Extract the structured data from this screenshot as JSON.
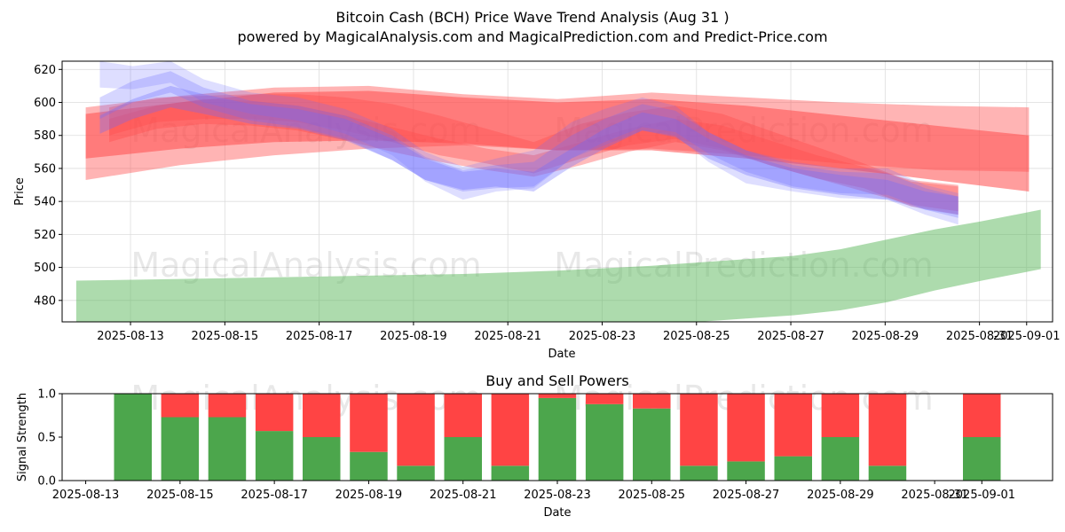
{
  "title_line1": "Bitcoin Cash (BCH) Price Wave Trend Analysis (Aug 31 )",
  "title_line2": "powered by MagicalAnalysis.com and MagicalPrediction.com and Predict-Price.com",
  "watermarks": [
    "MagicalAnalysis.com",
    "MagicalPrediction.com"
  ],
  "colors": {
    "red_band": "#ff4d4d",
    "blue_band": "#6b6bff",
    "green_band": "#5cb85c",
    "buy": "#4ca64c",
    "sell": "#ff4444",
    "grid": "#dddddd"
  },
  "chart_data": [
    {
      "type": "area",
      "title": "",
      "xlabel": "Date",
      "ylabel": "Price",
      "ylim": [
        467,
        625
      ],
      "xlim": [
        -0.5,
        20.5
      ],
      "x_tick_labels": [
        "2025-08-13",
        "2025-08-15",
        "2025-08-17",
        "2025-08-19",
        "2025-08-21",
        "2025-08-23",
        "2025-08-25",
        "2025-08-27",
        "2025-08-29",
        "2025-08-31",
        "2025-09-01"
      ],
      "x_tick_positions": [
        0.95,
        2.95,
        4.95,
        6.95,
        8.95,
        10.95,
        12.95,
        14.95,
        16.95,
        18.95,
        19.95
      ],
      "y_ticks": [
        480,
        500,
        520,
        540,
        560,
        580,
        600,
        620
      ],
      "grid": true,
      "series": [
        {
          "name": "wave-green",
          "kind": "band",
          "x": [
            -0.2,
            2,
            4,
            6,
            8,
            10,
            12,
            13,
            14,
            15,
            16,
            17,
            18,
            19,
            20.25
          ],
          "upper": [
            492,
            493,
            494,
            495,
            496,
            498,
            501,
            503,
            505,
            507,
            511,
            517,
            523,
            528,
            535
          ],
          "lower": [
            467,
            467,
            467,
            467,
            467,
            467,
            467,
            467,
            469,
            471,
            474,
            479,
            486,
            492,
            499
          ]
        },
        {
          "name": "wave-red-outer",
          "kind": "band",
          "x": [
            0,
            2,
            4,
            6,
            8,
            10,
            12,
            14,
            16,
            18,
            20
          ],
          "upper": [
            597,
            604,
            609,
            610,
            605,
            602,
            606,
            603,
            600,
            598,
            597
          ],
          "lower": [
            553,
            562,
            568,
            572,
            574,
            571,
            572,
            568,
            563,
            559,
            558
          ]
        },
        {
          "name": "wave-red-mid",
          "kind": "band",
          "x": [
            0,
            2,
            4,
            6,
            8,
            10,
            12,
            14,
            16,
            18,
            20
          ],
          "upper": [
            593,
            600,
            606,
            607,
            603,
            600,
            602,
            598,
            592,
            586,
            580
          ],
          "lower": [
            566,
            572,
            576,
            577,
            575,
            571,
            571,
            566,
            560,
            553,
            546
          ]
        },
        {
          "name": "wave-red-1",
          "kind": "band",
          "x": [
            0.5,
            1.5,
            2.5,
            3.5,
            4.5,
            5.5,
            6.5,
            7.5,
            8.5,
            9.5,
            10.5,
            11.5,
            12.5,
            13.5,
            14.5,
            15.5,
            16.5,
            17.5,
            18.5
          ],
          "upper": [
            597,
            603,
            604,
            605,
            605,
            603,
            599,
            592,
            584,
            576,
            587,
            594,
            598,
            593,
            583,
            573,
            563,
            552,
            549
          ],
          "lower": [
            580,
            588,
            590,
            590,
            588,
            583,
            576,
            568,
            563,
            557,
            566,
            574,
            578,
            572,
            562,
            554,
            548,
            537,
            532
          ]
        },
        {
          "name": "wave-red-2",
          "kind": "band",
          "x": [
            0.5,
            1.5,
            2.5,
            3.5,
            4.5,
            5.5,
            6.5,
            7.5,
            8.5,
            9.5,
            10.5,
            11.5,
            12.5,
            13.5,
            14.5,
            15.5,
            16.5,
            17.5,
            18.5
          ],
          "upper": [
            590,
            598,
            602,
            601,
            598,
            592,
            585,
            578,
            572,
            568,
            576,
            584,
            590,
            586,
            577,
            568,
            561,
            553,
            550
          ],
          "lower": [
            576,
            584,
            587,
            586,
            583,
            577,
            570,
            564,
            559,
            555,
            562,
            570,
            576,
            571,
            562,
            554,
            546,
            538,
            534
          ]
        },
        {
          "name": "wave-blue-1",
          "kind": "band",
          "x": [
            0.3,
            1,
            1.8,
            2.5,
            3.5,
            4.5,
            5.5,
            6.5,
            7.2,
            8,
            8.7,
            9.5,
            10.3,
            11,
            11.8,
            12.5,
            13.2,
            14,
            15,
            16,
            17,
            17.8,
            18.5
          ],
          "upper": [
            625,
            622,
            626,
            614,
            606,
            603,
            596,
            584,
            570,
            561,
            566,
            571,
            588,
            596,
            603,
            598,
            582,
            571,
            564,
            560,
            560,
            550,
            545
          ],
          "lower": [
            609,
            608,
            612,
            600,
            593,
            589,
            581,
            568,
            552,
            541,
            546,
            548,
            566,
            574,
            583,
            580,
            564,
            551,
            546,
            542,
            541,
            532,
            526
          ]
        },
        {
          "name": "wave-blue-2",
          "kind": "band",
          "x": [
            0.3,
            1,
            1.8,
            2.5,
            3.5,
            4.5,
            5.5,
            6.5,
            7.2,
            8,
            8.7,
            9.5,
            10.3,
            11,
            11.8,
            12.5,
            13.2,
            14,
            15,
            16,
            17,
            17.8,
            18.5
          ],
          "upper": [
            603,
            613,
            619,
            609,
            601,
            598,
            592,
            580,
            567,
            559,
            562,
            564,
            580,
            590,
            599,
            595,
            582,
            571,
            562,
            558,
            557,
            548,
            543
          ],
          "lower": [
            590,
            600,
            606,
            597,
            589,
            585,
            578,
            565,
            553,
            546,
            548,
            549,
            566,
            576,
            585,
            582,
            569,
            558,
            549,
            545,
            544,
            535,
            530
          ]
        },
        {
          "name": "wave-blue-3",
          "kind": "band",
          "x": [
            0.3,
            1,
            1.8,
            2.5,
            3.5,
            4.5,
            5.5,
            6.5,
            7.2,
            8,
            8.7,
            9.5,
            10.3,
            11,
            11.8,
            12.5,
            13.2,
            14,
            15,
            16,
            17,
            17.8,
            18.5
          ],
          "upper": [
            592,
            602,
            610,
            605,
            599,
            596,
            590,
            578,
            566,
            558,
            560,
            558,
            572,
            584,
            594,
            590,
            578,
            568,
            560,
            556,
            553,
            546,
            543
          ],
          "lower": [
            581,
            590,
            597,
            593,
            587,
            584,
            577,
            565,
            553,
            547,
            549,
            546,
            561,
            572,
            583,
            579,
            566,
            556,
            548,
            544,
            541,
            535,
            532
          ]
        }
      ]
    },
    {
      "type": "bar",
      "title": "Buy and Sell Powers",
      "xlabel": "Date",
      "ylabel": "Signal Strength",
      "ylim": [
        0,
        1.0
      ],
      "xlim": [
        -0.5,
        20.5
      ],
      "x_tick_labels": [
        "2025-08-13",
        "2025-08-15",
        "2025-08-17",
        "2025-08-19",
        "2025-08-21",
        "2025-08-23",
        "2025-08-25",
        "2025-08-27",
        "2025-08-29",
        "2025-08-31",
        "2025-09-01"
      ],
      "x_tick_positions": [
        0,
        2,
        4,
        6,
        8,
        10,
        12,
        14,
        16,
        18,
        19
      ],
      "y_ticks": [
        0.0,
        0.5,
        1.0
      ],
      "y_tick_labels": [
        "0.0",
        "0.5",
        "1.0"
      ],
      "x": [
        1,
        2,
        3,
        4,
        5,
        6,
        7,
        8,
        9,
        10,
        11,
        12,
        13,
        14,
        15,
        16,
        17,
        19
      ],
      "series": [
        {
          "name": "Buy",
          "values": [
            1.0,
            0.73,
            0.73,
            0.57,
            0.5,
            0.33,
            0.17,
            0.5,
            0.17,
            0.95,
            0.88,
            0.83,
            0.17,
            0.22,
            0.28,
            0.5,
            0.17,
            0.5
          ]
        },
        {
          "name": "Sell",
          "values": [
            0.0,
            0.27,
            0.27,
            0.43,
            0.5,
            0.67,
            0.83,
            0.5,
            0.83,
            0.05,
            0.12,
            0.17,
            0.83,
            0.78,
            0.72,
            0.5,
            0.83,
            0.5
          ]
        }
      ]
    }
  ]
}
